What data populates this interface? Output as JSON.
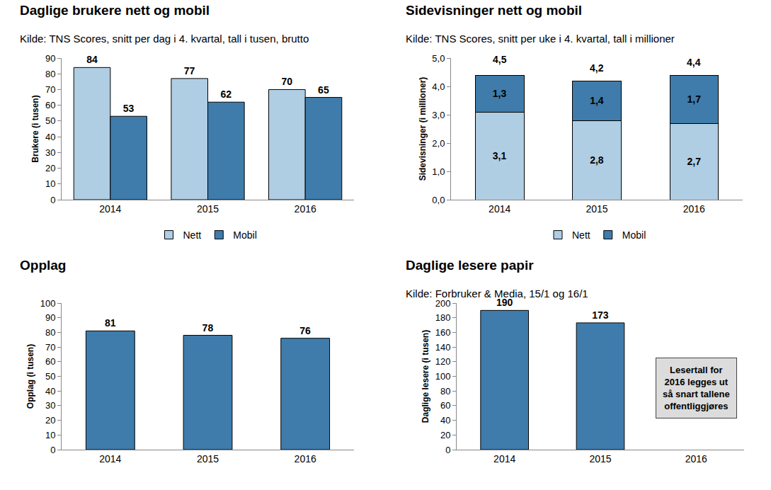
{
  "chart_data": [
    {
      "type": "bar",
      "title": "Daglige brukere nett og mobil",
      "subtitle": "Kilde: TNS Scores, snitt per dag i 4. kvartal, tall i tusen, brutto",
      "y_label": "Brukere (i tusen)",
      "categories": [
        "2014",
        "2015",
        "2016"
      ],
      "series": [
        {
          "name": "Nett",
          "color": "#afcde3",
          "values": [
            84,
            77,
            70
          ]
        },
        {
          "name": "Mobil",
          "color": "#3f7cab",
          "values": [
            53,
            62,
            65
          ]
        }
      ],
      "ylim": [
        0,
        90
      ],
      "yticks": [
        0,
        10,
        20,
        30,
        40,
        50,
        60,
        70,
        80,
        90
      ],
      "grid": false,
      "legend": "bottom",
      "data_labels": true
    },
    {
      "type": "bar",
      "title": "Sidevisninger nett og mobil",
      "subtitle": "Kilde: TNS Scores, snitt per uke i 4. kvartal, tall i millioner",
      "y_label": "Sidevisninger (i millioner)",
      "categories": [
        "2014",
        "2015",
        "2016"
      ],
      "series": [
        {
          "name": "Nett",
          "color": "#afcde3",
          "values": [
            3.1,
            2.8,
            2.7
          ],
          "value_labels": [
            "3,1",
            "2,8",
            "2,7"
          ]
        },
        {
          "name": "Mobil",
          "color": "#3f7cab",
          "values": [
            1.3,
            1.4,
            1.7
          ],
          "value_labels": [
            "1,3",
            "1,4",
            "1,7"
          ]
        }
      ],
      "totals": [
        4.5,
        4.2,
        4.4
      ],
      "total_labels": [
        "4,5",
        "4,2",
        "4,4"
      ],
      "stacked": true,
      "ylim": [
        0,
        5
      ],
      "yticks": [
        {
          "value": 0,
          "label": "0,0"
        },
        {
          "value": 1,
          "label": "1,0"
        },
        {
          "value": 2,
          "label": "2,0"
        },
        {
          "value": 3,
          "label": "3,0"
        },
        {
          "value": 4,
          "label": "4,0"
        },
        {
          "value": 5,
          "label": "5,0"
        }
      ],
      "grid": false,
      "legend": "bottom",
      "data_labels": true
    },
    {
      "type": "bar",
      "title": "Opplag",
      "y_label": "Opplag (i tusen)",
      "categories": [
        "2014",
        "2015",
        "2016"
      ],
      "values": [
        81,
        78,
        76
      ],
      "color": "#3f7cab",
      "ylim": [
        0,
        100
      ],
      "yticks": [
        0,
        10,
        20,
        30,
        40,
        50,
        60,
        70,
        80,
        90,
        100
      ],
      "grid": false,
      "data_labels": true
    },
    {
      "type": "bar",
      "title": "Daglige lesere papir",
      "subtitle": "Kilde: Forbruker & Media, 15/1 og 16/1",
      "y_label": "Daglige lesere (i tusen)",
      "categories": [
        "2014",
        "2015",
        "2016"
      ],
      "values": [
        190,
        173,
        null
      ],
      "color": "#3f7cab",
      "ylim": [
        0,
        200
      ],
      "yticks": [
        0,
        20,
        40,
        60,
        80,
        100,
        120,
        140,
        160,
        180,
        200
      ],
      "grid": false,
      "data_labels": true,
      "annotations": [
        {
          "category": "2016",
          "text": "Lesertall for\n2016 legges ut\nså snart tallene\noffentliggjøres"
        }
      ]
    }
  ]
}
